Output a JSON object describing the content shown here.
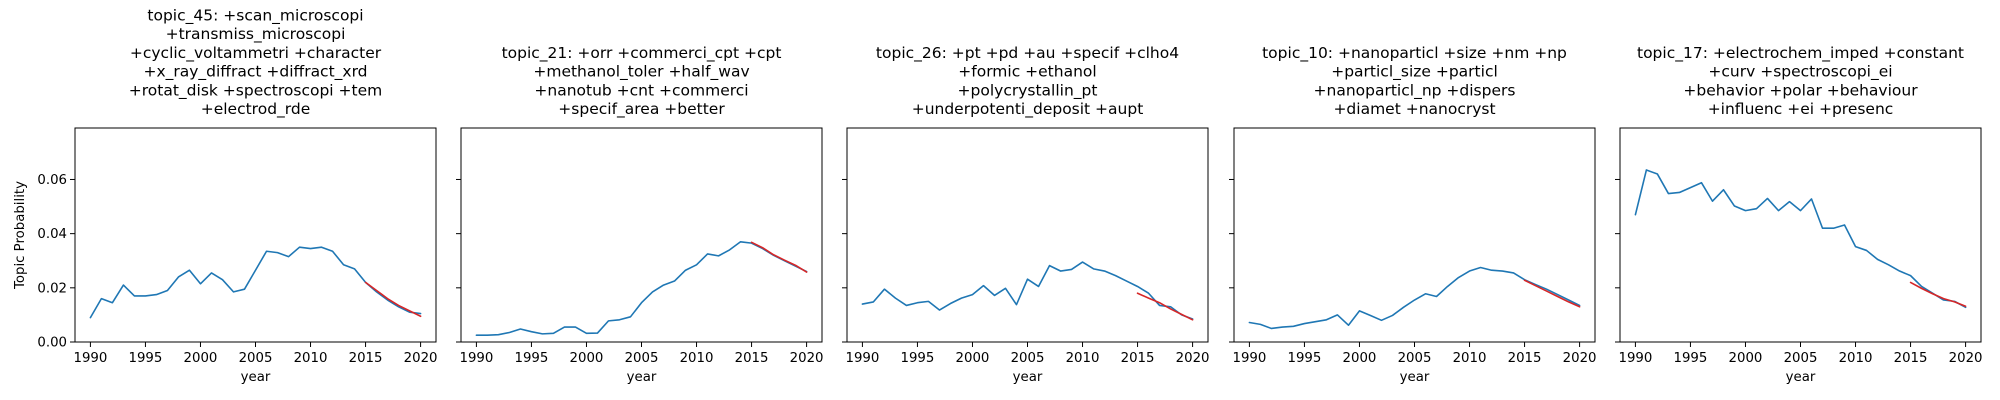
{
  "chart_data": [
    {
      "type": "line",
      "title_lines": [
        "topic_45: +scan_microscopi",
        "+transmiss_microscopi",
        "+cyclic_voltammetri +character",
        "+x_ray_diffract +diffract_xrd",
        "+rotat_disk +spectroscopi +tem",
        "+electrod_rde"
      ],
      "xlabel": "year",
      "ylabel": "Topic Probability",
      "xlim": [
        1988.6,
        2021.4
      ],
      "ylim": [
        0.0,
        0.079
      ],
      "xticks": [
        1990,
        1995,
        2000,
        2005,
        2010,
        2015,
        2020
      ],
      "xtick_labels": [
        "1990",
        "1995",
        "2000",
        "2005",
        "2010",
        "2015",
        "2020"
      ],
      "yticks": [
        0.0,
        0.02,
        0.04,
        0.06
      ],
      "ytick_labels": [
        "0.00",
        "0.02",
        "0.04",
        "0.06"
      ],
      "show_ytick_labels": true,
      "series": [
        {
          "role": "observed",
          "color": "#1f77b4",
          "x": [
            1990,
            1991,
            1992,
            1993,
            1994,
            1995,
            1996,
            1997,
            1998,
            1999,
            2000,
            2001,
            2002,
            2003,
            2004,
            2005,
            2006,
            2007,
            2008,
            2009,
            2010,
            2011,
            2012,
            2013,
            2014,
            2015,
            2016,
            2017,
            2018,
            2019,
            2020
          ],
          "y": [
            0.009,
            0.016,
            0.0145,
            0.021,
            0.017,
            0.017,
            0.0175,
            0.019,
            0.024,
            0.0265,
            0.0215,
            0.0255,
            0.023,
            0.0185,
            0.0195,
            0.0265,
            0.0335,
            0.033,
            0.0315,
            0.035,
            0.0345,
            0.035,
            0.0335,
            0.0285,
            0.027,
            0.022,
            0.0185,
            0.0155,
            0.013,
            0.011,
            0.0105
          ]
        },
        {
          "role": "forecast",
          "color": "#d62728",
          "x": [
            2015,
            2016,
            2017,
            2018,
            2019,
            2020
          ],
          "y": [
            0.022,
            0.019,
            0.016,
            0.0135,
            0.0115,
            0.0095
          ]
        }
      ]
    },
    {
      "type": "line",
      "title_lines": [
        "topic_21: +orr +commerci_cpt +cpt",
        "+methanol_toler +half_wav",
        "+nanotub +cnt +commerci",
        "+specif_area +better"
      ],
      "xlabel": "year",
      "ylabel": "",
      "xlim": [
        1988.6,
        2021.4
      ],
      "ylim": [
        0.0,
        0.079
      ],
      "xticks": [
        1990,
        1995,
        2000,
        2005,
        2010,
        2015,
        2020
      ],
      "xtick_labels": [
        "1990",
        "1995",
        "2000",
        "2005",
        "2010",
        "2015",
        "2020"
      ],
      "yticks": [
        0.0,
        0.02,
        0.04,
        0.06
      ],
      "ytick_labels": [
        "0.00",
        "0.02",
        "0.04",
        "0.06"
      ],
      "show_ytick_labels": false,
      "series": [
        {
          "role": "observed",
          "color": "#1f77b4",
          "x": [
            1990,
            1991,
            1992,
            1993,
            1994,
            1995,
            1996,
            1997,
            1998,
            1999,
            2000,
            2001,
            2002,
            2003,
            2004,
            2005,
            2006,
            2007,
            2008,
            2009,
            2010,
            2011,
            2012,
            2013,
            2014,
            2015,
            2016,
            2017,
            2018,
            2019,
            2020
          ],
          "y": [
            0.0025,
            0.0025,
            0.0027,
            0.0035,
            0.0048,
            0.0038,
            0.003,
            0.0032,
            0.0055,
            0.0055,
            0.0032,
            0.0033,
            0.0078,
            0.0082,
            0.0093,
            0.0145,
            0.0185,
            0.021,
            0.0225,
            0.0265,
            0.0285,
            0.0325,
            0.0318,
            0.034,
            0.037,
            0.0365,
            0.0345,
            0.032,
            0.03,
            0.028,
            0.026
          ]
        },
        {
          "role": "forecast",
          "color": "#d62728",
          "x": [
            2015,
            2016,
            2017,
            2018,
            2019,
            2020
          ],
          "y": [
            0.0368,
            0.0348,
            0.0322,
            0.0302,
            0.0283,
            0.0258
          ]
        }
      ]
    },
    {
      "type": "line",
      "title_lines": [
        "topic_26: +pt +pd +au +specif +clho4",
        "+formic +ethanol",
        "+polycrystallin_pt",
        "+underpotenti_deposit +aupt"
      ],
      "xlabel": "year",
      "ylabel": "",
      "xlim": [
        1988.6,
        2021.4
      ],
      "ylim": [
        0.0,
        0.079
      ],
      "xticks": [
        1990,
        1995,
        2000,
        2005,
        2010,
        2015,
        2020
      ],
      "xtick_labels": [
        "1990",
        "1995",
        "2000",
        "2005",
        "2010",
        "2015",
        "2020"
      ],
      "yticks": [
        0.0,
        0.02,
        0.04,
        0.06
      ],
      "ytick_labels": [
        "0.00",
        "0.02",
        "0.04",
        "0.06"
      ],
      "show_ytick_labels": false,
      "series": [
        {
          "role": "observed",
          "color": "#1f77b4",
          "x": [
            1990,
            1991,
            1992,
            1993,
            1994,
            1995,
            1996,
            1997,
            1998,
            1999,
            2000,
            2001,
            2002,
            2003,
            2004,
            2005,
            2006,
            2007,
            2008,
            2009,
            2010,
            2011,
            2012,
            2013,
            2014,
            2015,
            2016,
            2017,
            2018,
            2019,
            2020
          ],
          "y": [
            0.014,
            0.0148,
            0.0195,
            0.0162,
            0.0135,
            0.0145,
            0.015,
            0.0118,
            0.0142,
            0.0162,
            0.0175,
            0.0208,
            0.0172,
            0.0198,
            0.0138,
            0.0232,
            0.0205,
            0.0282,
            0.0262,
            0.0268,
            0.0295,
            0.027,
            0.0262,
            0.0245,
            0.0225,
            0.0205,
            0.018,
            0.0135,
            0.013,
            0.01,
            0.0085
          ]
        },
        {
          "role": "forecast",
          "color": "#d62728",
          "x": [
            2015,
            2016,
            2017,
            2018,
            2019,
            2020
          ],
          "y": [
            0.018,
            0.0162,
            0.0145,
            0.0122,
            0.0102,
            0.0082
          ]
        }
      ]
    },
    {
      "type": "line",
      "title_lines": [
        "topic_10: +nanoparticl +size +nm +np",
        "+particl_size +particl",
        "+nanoparticl_np +dispers",
        "+diamet +nanocryst"
      ],
      "xlabel": "year",
      "ylabel": "",
      "xlim": [
        1988.6,
        2021.4
      ],
      "ylim": [
        0.0,
        0.079
      ],
      "xticks": [
        1990,
        1995,
        2000,
        2005,
        2010,
        2015,
        2020
      ],
      "xtick_labels": [
        "1990",
        "1995",
        "2000",
        "2005",
        "2010",
        "2015",
        "2020"
      ],
      "yticks": [
        0.0,
        0.02,
        0.04,
        0.06
      ],
      "ytick_labels": [
        "0.00",
        "0.02",
        "0.04",
        "0.06"
      ],
      "show_ytick_labels": false,
      "series": [
        {
          "role": "observed",
          "color": "#1f77b4",
          "x": [
            1990,
            1991,
            1992,
            1993,
            1994,
            1995,
            1996,
            1997,
            1998,
            1999,
            2000,
            2001,
            2002,
            2003,
            2004,
            2005,
            2006,
            2007,
            2008,
            2009,
            2010,
            2011,
            2012,
            2013,
            2014,
            2015,
            2016,
            2017,
            2018,
            2019,
            2020
          ],
          "y": [
            0.0072,
            0.0065,
            0.005,
            0.0055,
            0.0058,
            0.0068,
            0.0075,
            0.0082,
            0.01,
            0.0062,
            0.0115,
            0.0098,
            0.008,
            0.0098,
            0.0128,
            0.0155,
            0.0178,
            0.0168,
            0.0205,
            0.0238,
            0.0262,
            0.0275,
            0.0265,
            0.0262,
            0.0255,
            0.023,
            0.0212,
            0.0195,
            0.0175,
            0.0155,
            0.0135
          ]
        },
        {
          "role": "forecast",
          "color": "#d62728",
          "x": [
            2015,
            2016,
            2017,
            2018,
            2019,
            2020
          ],
          "y": [
            0.0228,
            0.0208,
            0.0188,
            0.0168,
            0.0148,
            0.013
          ]
        }
      ]
    },
    {
      "type": "line",
      "title_lines": [
        "topic_17: +electrochem_imped +constant",
        "+curv +spectroscopi_ei",
        "+behavior +polar +behaviour",
        "+influenc +ei +presenc"
      ],
      "xlabel": "year",
      "ylabel": "",
      "xlim": [
        1988.6,
        2021.4
      ],
      "ylim": [
        0.0,
        0.079
      ],
      "xticks": [
        1990,
        1995,
        2000,
        2005,
        2010,
        2015,
        2020
      ],
      "xtick_labels": [
        "1990",
        "1995",
        "2000",
        "2005",
        "2010",
        "2015",
        "2020"
      ],
      "yticks": [
        0.0,
        0.02,
        0.04,
        0.06
      ],
      "ytick_labels": [
        "0.00",
        "0.02",
        "0.04",
        "0.06"
      ],
      "show_ytick_labels": false,
      "series": [
        {
          "role": "observed",
          "color": "#1f77b4",
          "x": [
            1990,
            1991,
            1992,
            1993,
            1994,
            1995,
            1996,
            1997,
            1998,
            1999,
            2000,
            2001,
            2002,
            2003,
            2004,
            2005,
            2006,
            2007,
            2008,
            2009,
            2010,
            2011,
            2012,
            2013,
            2014,
            2015,
            2016,
            2017,
            2018,
            2019,
            2020
          ],
          "y": [
            0.047,
            0.0635,
            0.062,
            0.0548,
            0.0552,
            0.057,
            0.0588,
            0.052,
            0.0562,
            0.0502,
            0.0485,
            0.0492,
            0.053,
            0.0485,
            0.0518,
            0.0485,
            0.0528,
            0.042,
            0.042,
            0.0432,
            0.0352,
            0.0338,
            0.0305,
            0.0285,
            0.0262,
            0.0245,
            0.0205,
            0.018,
            0.0155,
            0.015,
            0.0128
          ]
        },
        {
          "role": "forecast",
          "color": "#d62728",
          "x": [
            2015,
            2016,
            2017,
            2018,
            2019,
            2020
          ],
          "y": [
            0.022,
            0.0198,
            0.0178,
            0.016,
            0.0148,
            0.0132
          ]
        }
      ]
    }
  ]
}
